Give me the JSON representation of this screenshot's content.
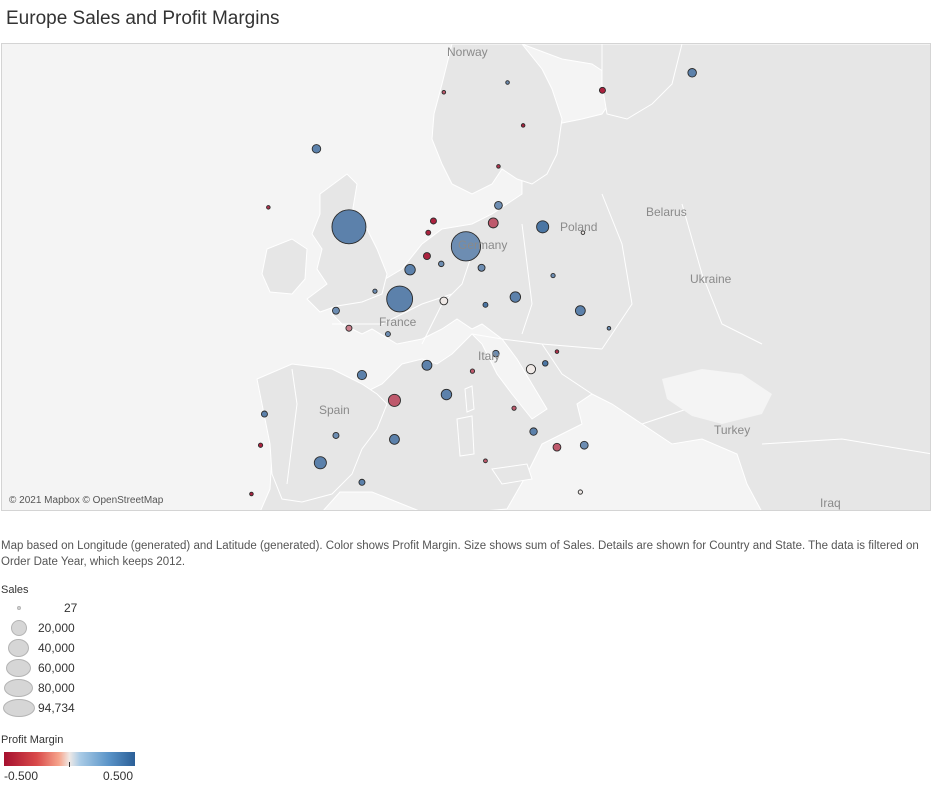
{
  "title": "Europe Sales and Profit Margins",
  "map": {
    "background": "#f4f4f4",
    "land_color": "#e6e6e6",
    "border_color": "#ffffff",
    "country_labels": [
      "Norway",
      "Belarus",
      "Poland",
      "Germany",
      "Ukraine",
      "France",
      "Italy",
      "Spain",
      "Turkey",
      "Iraq"
    ],
    "attribution": "© 2021 Mapbox © OpenStreetMap"
  },
  "caption": "Map based on Longitude (generated) and Latitude (generated).  Color shows Profit Margin.  Size shows sum of Sales.  Details are shown for Country and State. The data is filtered on Order Date Year, which keeps 2012.",
  "legend_sales": {
    "title": "Sales",
    "items": [
      "27",
      "20,000",
      "40,000",
      "60,000",
      "80,000",
      "94,734"
    ]
  },
  "legend_margin": {
    "title": "Profit Margin",
    "min_label": "-0.500",
    "max_label": "0.500",
    "colors": [
      "#a5102f",
      "#efe9e6",
      "#2b5f97"
    ]
  },
  "chart_data": {
    "type": "scatter",
    "size_measure": "Sales",
    "color_measure": "Profit Margin",
    "markers": [
      {
        "name": "UK-England",
        "lon": -1.5,
        "lat": 52.5,
        "sales": 94734,
        "margin": 0.35
      },
      {
        "name": "Germany-NRW",
        "lon": 7.5,
        "lat": 51.5,
        "sales": 70000,
        "margin": 0.3
      },
      {
        "name": "France-IDF",
        "lon": 2.4,
        "lat": 48.8,
        "sales": 55000,
        "margin": 0.35
      },
      {
        "name": "UK-Scotland",
        "lon": -4.0,
        "lat": 56.5,
        "sales": 6000,
        "margin": 0.35
      },
      {
        "name": "Sweden-Stockholm",
        "lon": 18.0,
        "lat": 59.5,
        "sales": 3000,
        "margin": -0.45
      },
      {
        "name": "Finland",
        "lon": 24.9,
        "lat": 60.4,
        "sales": 6000,
        "margin": 0.35
      },
      {
        "name": "Norway-Oslo",
        "lon": 10.7,
        "lat": 59.9,
        "sales": 800,
        "margin": 0.3
      },
      {
        "name": "Norway-West",
        "lon": 5.8,
        "lat": 59.4,
        "sales": 600,
        "margin": -0.3
      },
      {
        "name": "Sweden-Gothenburg",
        "lon": 11.9,
        "lat": 57.7,
        "sales": 500,
        "margin": -0.45
      },
      {
        "name": "Germany-Hamburg",
        "lon": 10.0,
        "lat": 53.6,
        "sales": 5000,
        "margin": 0.3
      },
      {
        "name": "Germany-Berlin",
        "lon": 13.4,
        "lat": 52.5,
        "sales": 12000,
        "margin": 0.4
      },
      {
        "name": "Germany-LowerSaxony",
        "lon": 9.6,
        "lat": 52.7,
        "sales": 8000,
        "margin": -0.3
      },
      {
        "name": "Netherlands-1",
        "lon": 5.0,
        "lat": 52.8,
        "sales": 3000,
        "margin": -0.45
      },
      {
        "name": "Netherlands-2",
        "lon": 4.6,
        "lat": 52.2,
        "sales": 2000,
        "margin": -0.45
      },
      {
        "name": "Belgium-1",
        "lon": 4.5,
        "lat": 51.0,
        "sales": 4000,
        "margin": -0.45
      },
      {
        "name": "Belgium-2",
        "lon": 5.6,
        "lat": 50.6,
        "sales": 2500,
        "margin": 0.3
      },
      {
        "name": "Germany-Hesse",
        "lon": 8.7,
        "lat": 50.4,
        "sales": 4000,
        "margin": 0.3
      },
      {
        "name": "France-North",
        "lon": 3.2,
        "lat": 50.3,
        "sales": 9000,
        "margin": 0.35
      },
      {
        "name": "Germany-Bavaria",
        "lon": 11.3,
        "lat": 48.9,
        "sales": 9000,
        "margin": 0.35
      },
      {
        "name": "Germany-BW",
        "lon": 9.0,
        "lat": 48.5,
        "sales": 2000,
        "margin": 0.4
      },
      {
        "name": "Austria-Vienna",
        "lon": 16.3,
        "lat": 48.2,
        "sales": 8000,
        "margin": 0.35
      },
      {
        "name": "France-Grand-Est",
        "lon": 5.8,
        "lat": 48.7,
        "sales": 5000,
        "margin": 0.0
      },
      {
        "name": "France-Brittany",
        "lon": -2.5,
        "lat": 48.2,
        "sales": 4000,
        "margin": 0.3
      },
      {
        "name": "France-Normandy",
        "lon": 0.5,
        "lat": 49.2,
        "sales": 1500,
        "margin": 0.3
      },
      {
        "name": "France-Pays-Loire",
        "lon": -1.5,
        "lat": 47.3,
        "sales": 3000,
        "margin": -0.2
      },
      {
        "name": "France-Centre",
        "lon": 1.5,
        "lat": 47.0,
        "sales": 2000,
        "margin": 0.3
      },
      {
        "name": "France-Auvergne",
        "lon": 4.5,
        "lat": 45.4,
        "sales": 8000,
        "margin": 0.35
      },
      {
        "name": "France-Aquitaine",
        "lon": -0.5,
        "lat": 44.9,
        "sales": 7000,
        "margin": 0.35
      },
      {
        "name": "France-Occitanie",
        "lon": 2.0,
        "lat": 43.6,
        "sales": 12000,
        "margin": -0.3
      },
      {
        "name": "France-PACA",
        "lon": 6.0,
        "lat": 43.9,
        "sales": 9000,
        "margin": 0.35
      },
      {
        "name": "Italy-Lombardy",
        "lon": 9.8,
        "lat": 46.0,
        "sales": 3500,
        "margin": 0.3
      },
      {
        "name": "Italy-Veneto",
        "lon": 12.5,
        "lat": 45.2,
        "sales": 7000,
        "margin": 0.0
      },
      {
        "name": "Italy-Friuli",
        "lon": 13.6,
        "lat": 45.5,
        "sales": 2500,
        "margin": 0.4
      },
      {
        "name": "Italy-Piedmont",
        "lon": 8.0,
        "lat": 45.1,
        "sales": 1500,
        "margin": -0.3
      },
      {
        "name": "Italy-Tuscany",
        "lon": 11.2,
        "lat": 43.2,
        "sales": 1500,
        "margin": -0.3
      },
      {
        "name": "Italy-Lazio",
        "lon": 12.7,
        "lat": 42.0,
        "sales": 4500,
        "margin": 0.35
      },
      {
        "name": "Italy-Campania",
        "lon": 14.5,
        "lat": 41.2,
        "sales": 5000,
        "margin": -0.3
      },
      {
        "name": "Italy-Puglia",
        "lon": 16.6,
        "lat": 41.3,
        "sales": 5000,
        "margin": 0.3
      },
      {
        "name": "Italy-Calabria",
        "lon": 16.3,
        "lat": 38.9,
        "sales": 1500,
        "margin": 0.0
      },
      {
        "name": "Italy-Sardinia",
        "lon": 9.0,
        "lat": 40.5,
        "sales": 1200,
        "margin": -0.3
      },
      {
        "name": "Spain-Galicia",
        "lon": -8.0,
        "lat": 42.9,
        "sales": 3000,
        "margin": 0.35
      },
      {
        "name": "Spain-Catalonia",
        "lon": 2.0,
        "lat": 41.6,
        "sales": 8000,
        "margin": 0.35
      },
      {
        "name": "Spain-Madrid",
        "lon": -3.7,
        "lat": 40.4,
        "sales": 12000,
        "margin": 0.35
      },
      {
        "name": "Spain-Valencia",
        "lon": -0.5,
        "lat": 39.4,
        "sales": 3000,
        "margin": 0.35
      },
      {
        "name": "Spain-Andalusia",
        "lon": -4.7,
        "lat": 37.4,
        "sales": 5000,
        "margin": 0.35
      },
      {
        "name": "Spain-Aragon",
        "lon": -2.5,
        "lat": 41.8,
        "sales": 3000,
        "margin": 0.3
      },
      {
        "name": "Portugal-North",
        "lon": -8.3,
        "lat": 41.3,
        "sales": 1500,
        "margin": -0.45
      },
      {
        "name": "Portugal-Lisbon",
        "lon": -9.0,
        "lat": 38.8,
        "sales": 1000,
        "margin": -0.45
      },
      {
        "name": "Ireland",
        "lon": -7.7,
        "lat": 53.5,
        "sales": 1000,
        "margin": -0.4
      },
      {
        "name": "Poland-West",
        "lon": 16.5,
        "lat": 52.2,
        "sales": 800,
        "margin": 0.0
      },
      {
        "name": "Czechia",
        "lon": 14.2,
        "lat": 50.0,
        "sales": 1500,
        "margin": 0.3
      },
      {
        "name": "Slovenia",
        "lon": 14.5,
        "lat": 46.1,
        "sales": 800,
        "margin": -0.4
      },
      {
        "name": "Hungary",
        "lon": 18.5,
        "lat": 47.3,
        "sales": 800,
        "margin": 0.3
      },
      {
        "name": "Denmark",
        "lon": 10.0,
        "lat": 55.6,
        "sales": 800,
        "margin": -0.4
      }
    ]
  }
}
